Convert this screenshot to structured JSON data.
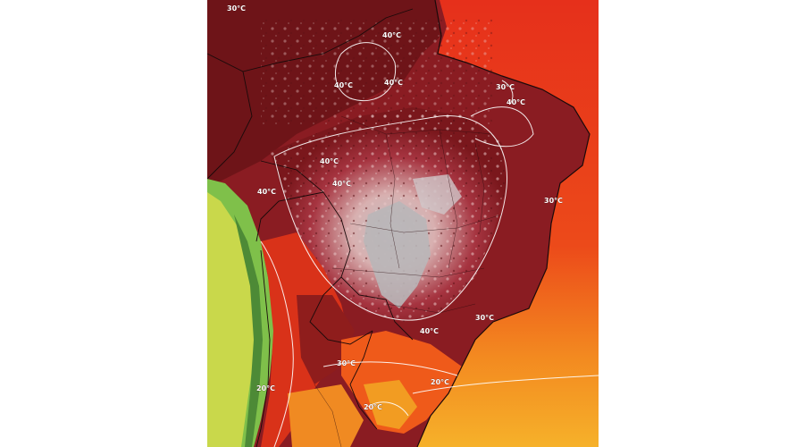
{
  "map": {
    "colors": {
      "ocean_hot": "#e2341c",
      "ocean_warm": "#f26a1b",
      "ocean_mild": "#f6a21e",
      "deep_red": "#8a1c22",
      "maroon": "#6e1418",
      "pink": "#d9a6a6",
      "grey": "#b9b6b8",
      "yellow_green": "#c9d84b",
      "green": "#7fc04a",
      "andes_dark": "#4d8a36"
    },
    "isotherm_labels": [
      {
        "id": "nw",
        "text": "30°C"
      },
      {
        "id": "north",
        "text": "40°C"
      },
      {
        "id": "center-north",
        "text": "40°C"
      },
      {
        "id": "north-2",
        "text": "40°C"
      },
      {
        "id": "east-coast-north",
        "text": "30°C"
      },
      {
        "id": "east-40",
        "text": "40°C"
      },
      {
        "id": "west-40a",
        "text": "40°C"
      },
      {
        "id": "west-40b",
        "text": "40°C"
      },
      {
        "id": "west-40c",
        "text": "40°C"
      },
      {
        "id": "east-coast",
        "text": "30°C"
      },
      {
        "id": "southeast",
        "text": "30°C"
      },
      {
        "id": "south-40",
        "text": "40°C"
      },
      {
        "id": "south-30",
        "text": "30°C"
      },
      {
        "id": "atlantic-20",
        "text": "20°C"
      },
      {
        "id": "chile-20",
        "text": "20°C"
      },
      {
        "id": "uruguay-20",
        "text": "20°C"
      }
    ]
  }
}
